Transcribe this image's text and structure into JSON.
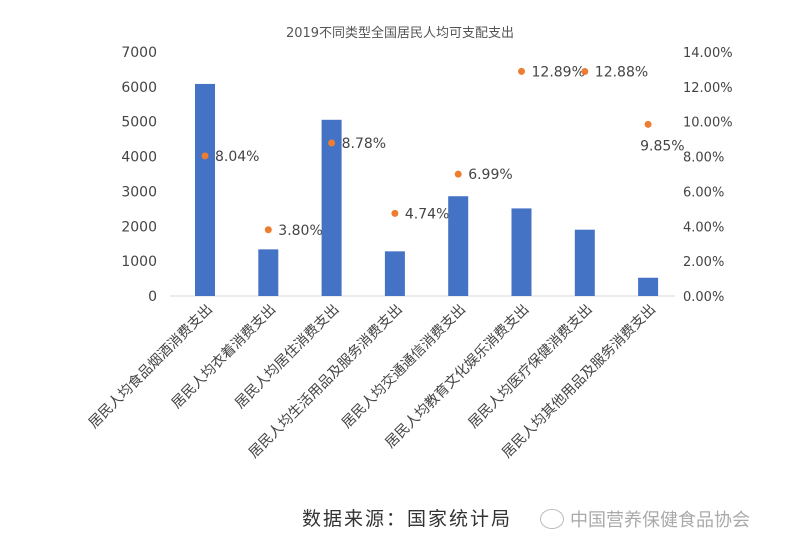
{
  "chart_data": {
    "type": "bar",
    "title": "2019不同类型全国居民人均可支配支出",
    "categories": [
      "居民人均食品烟酒消费支出",
      "居民人均衣着消费支出",
      "居民人均居住消费支出",
      "居民人均生活用品及服务消费支出",
      "居民人均交通通信消费支出",
      "居民人均教育文化娱乐消费支出",
      "居民人均医疗保健消费支出",
      "居民人均其他用品及服务消费支出"
    ],
    "series": [
      {
        "type": "bar",
        "axis": "left",
        "color": "#4472C4",
        "values": [
          6084,
          1338,
          5055,
          1281,
          2862,
          2513,
          1902,
          524
        ]
      },
      {
        "type": "scatter",
        "axis": "right",
        "color": "#ED7D31",
        "values": [
          8.04,
          3.8,
          8.78,
          4.74,
          6.99,
          12.89,
          12.88,
          9.85
        ],
        "labels": [
          "8.04%",
          "3.80%",
          "8.78%",
          "4.74%",
          "6.99%",
          "12.89%",
          "12.88%",
          "9.85%"
        ]
      }
    ],
    "ylim": [
      0,
      7000
    ],
    "yticks": [
      "0",
      "1000",
      "2000",
      "3000",
      "4000",
      "5000",
      "6000",
      "7000"
    ],
    "y2lim": [
      0,
      14
    ],
    "y2ticks": [
      "0.00%",
      "2.00%",
      "4.00%",
      "6.00%",
      "8.00%",
      "10.00%",
      "12.00%",
      "14.00%"
    ],
    "grid": false,
    "legend": "none"
  },
  "footer": {
    "source": "数据来源：国家统计局",
    "watermark": "中国营养保健食品协会"
  }
}
